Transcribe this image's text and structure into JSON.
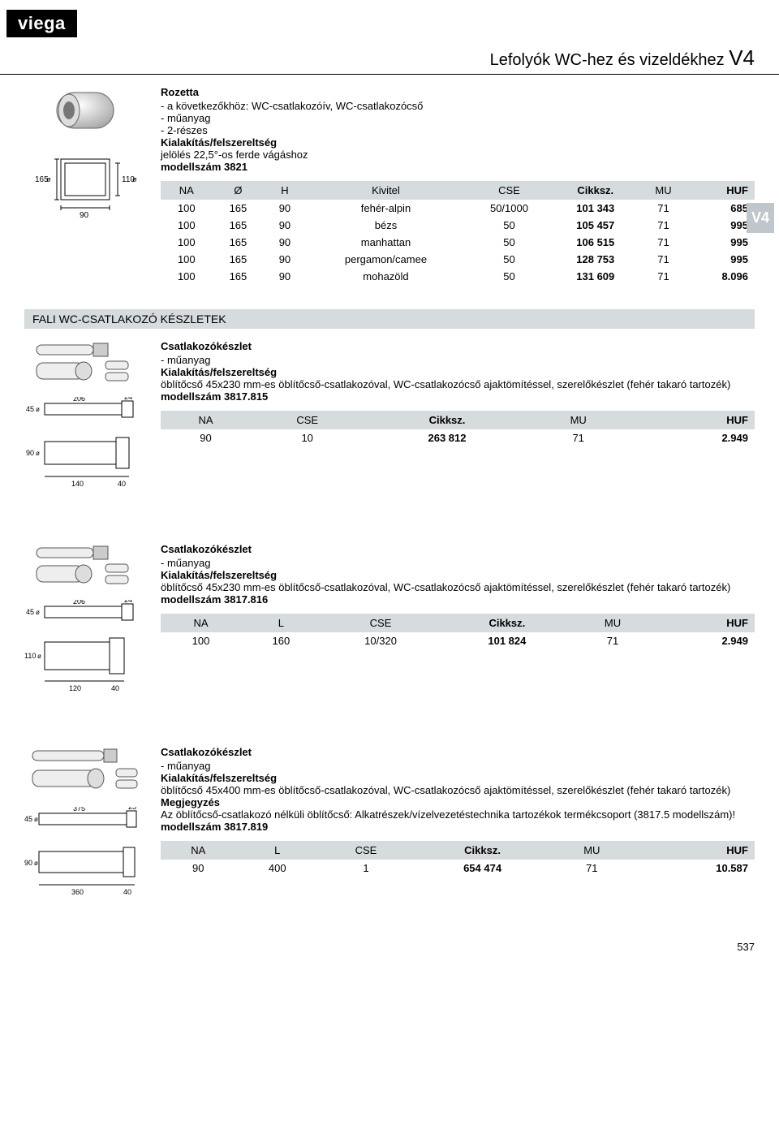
{
  "logo": "viega",
  "page_title_text": "Lefolyók WC-hez és vizeldékhez",
  "page_title_code": "V4",
  "side_tab": "V4",
  "page_number": "537",
  "section_heading": "FALI WC-CSATLAKOZÓ KÉSZLETEK",
  "products": [
    {
      "title": "Rozetta",
      "lines": [
        "- a következőkhöz: WC-csatlakozóív, WC-csatlakozócső",
        "- műanyag",
        "- 2-részes"
      ],
      "sub_bold": "Kialakítás/felszereltség",
      "sub_text": "jelölés 22,5°-os ferde vágáshoz",
      "model": "modellszám 3821",
      "table": {
        "columns": [
          "NA",
          "Ø",
          "H",
          "Kivitel",
          "CSE",
          "Cikksz.",
          "MU",
          "HUF"
        ],
        "bold_cols": [
          5,
          7
        ],
        "align_right": [
          7
        ],
        "rows": [
          [
            "100",
            "165",
            "90",
            "fehér-alpin",
            "50/1000",
            "101 343",
            "71",
            "685"
          ],
          [
            "100",
            "165",
            "90",
            "bézs",
            "50",
            "105 457",
            "71",
            "995"
          ],
          [
            "100",
            "165",
            "90",
            "manhattan",
            "50",
            "106 515",
            "71",
            "995"
          ],
          [
            "100",
            "165",
            "90",
            "pergamon/camee",
            "50",
            "128 753",
            "71",
            "995"
          ],
          [
            "100",
            "165",
            "90",
            "mohazöld",
            "50",
            "131 609",
            "71",
            "8.096"
          ]
        ]
      }
    },
    {
      "title": "Csatlakozókészlet",
      "lines": [
        "- műanyag"
      ],
      "sub_bold": "Kialakítás/felszereltség",
      "sub_text": "öblítőcső 45x230 mm-es öblítőcső-csatlakozóval, WC-csatlakozócső ajaktömítéssel, szerelőkészlet (fehér takaró tartozék)",
      "model": "modellszám 3817.815",
      "table": {
        "columns": [
          "NA",
          "CSE",
          "Cikksz.",
          "MU",
          "HUF"
        ],
        "bold_cols": [
          2,
          4
        ],
        "align_right": [
          4
        ],
        "rows": [
          [
            "90",
            "10",
            "263 812",
            "71",
            "2.949"
          ]
        ]
      }
    },
    {
      "title": "Csatlakozókészlet",
      "lines": [
        "- műanyag"
      ],
      "sub_bold": "Kialakítás/felszereltség",
      "sub_text": "öblítőcső 45x230 mm-es öblítőcső-csatlakozóval, WC-csatlakozócső ajaktömítéssel, szerelőkészlet (fehér takaró tartozék)",
      "model": "modellszám 3817.816",
      "table": {
        "columns": [
          "NA",
          "L",
          "CSE",
          "Cikksz.",
          "MU",
          "HUF"
        ],
        "bold_cols": [
          3,
          5
        ],
        "align_right": [
          5
        ],
        "rows": [
          [
            "100",
            "160",
            "10/320",
            "101 824",
            "71",
            "2.949"
          ]
        ]
      }
    },
    {
      "title": "Csatlakozókészlet",
      "lines": [
        "- műanyag"
      ],
      "sub_bold": "Kialakítás/felszereltség",
      "sub_text": "öblítőcső 45x400 mm-es öblítőcső-csatlakozóval, WC-csatlakozócső ajaktömítéssel, szerelőkészlet (fehér takaró tartozék)",
      "note_bold": "Megjegyzés",
      "note_text": "Az öblítőcső-csatlakozó nélküli öblítőcső: Alkatrészek/vízelvezetéstechnika tartozékok termékcsoport (3817.5 modellszám)!",
      "model": "modellszám 3817.819",
      "table": {
        "columns": [
          "NA",
          "L",
          "CSE",
          "Cikksz.",
          "MU",
          "HUF"
        ],
        "bold_cols": [
          3,
          5
        ],
        "align_right": [
          5
        ],
        "rows": [
          [
            "90",
            "400",
            "1",
            "654 474",
            "71",
            "10.587"
          ]
        ]
      }
    }
  ],
  "diagrams": {
    "rozetta_labels": {
      "d1": "165",
      "d2": "110",
      "w": "90"
    },
    "kit2_labels": {
      "l": "206",
      "e": "24",
      "a": "45",
      "b": "90",
      "c": "140",
      "d": "40"
    },
    "kit3_labels": {
      "l": "206",
      "e": "24",
      "a": "45",
      "b": "110",
      "c": "120",
      "d": "40"
    },
    "kit4_labels": {
      "l": "375",
      "e": "25",
      "a": "45",
      "b": "90",
      "c": "360",
      "d": "40"
    }
  }
}
